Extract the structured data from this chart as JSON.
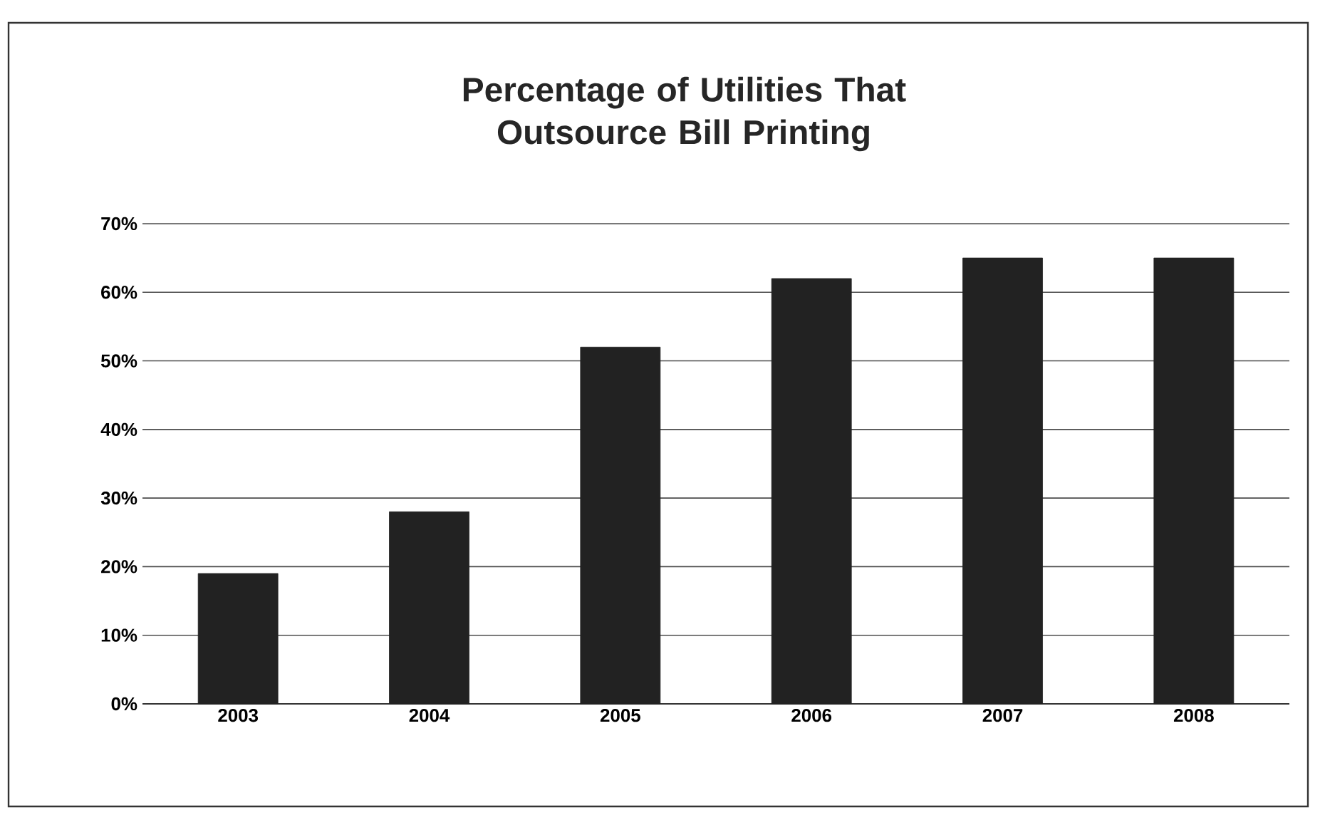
{
  "chart_data": {
    "type": "bar",
    "title": "Percentage of Utilities That Outsource Bill Printing",
    "categories": [
      "2003",
      "2004",
      "2005",
      "2006",
      "2007",
      "2008"
    ],
    "values": [
      19,
      28,
      52,
      62,
      65,
      65
    ],
    "color": "#222222",
    "ylim": [
      0,
      70
    ],
    "yticks": [
      {
        "value": 0,
        "label": "0%"
      },
      {
        "value": 10,
        "label": "10%"
      },
      {
        "value": 20,
        "label": "20%"
      },
      {
        "value": 30,
        "label": "30%"
      },
      {
        "value": 40,
        "label": "40%"
      },
      {
        "value": 50,
        "label": "50%"
      },
      {
        "value": 60,
        "label": "60%"
      },
      {
        "value": 70,
        "label": "70%"
      }
    ],
    "grid": "y"
  }
}
